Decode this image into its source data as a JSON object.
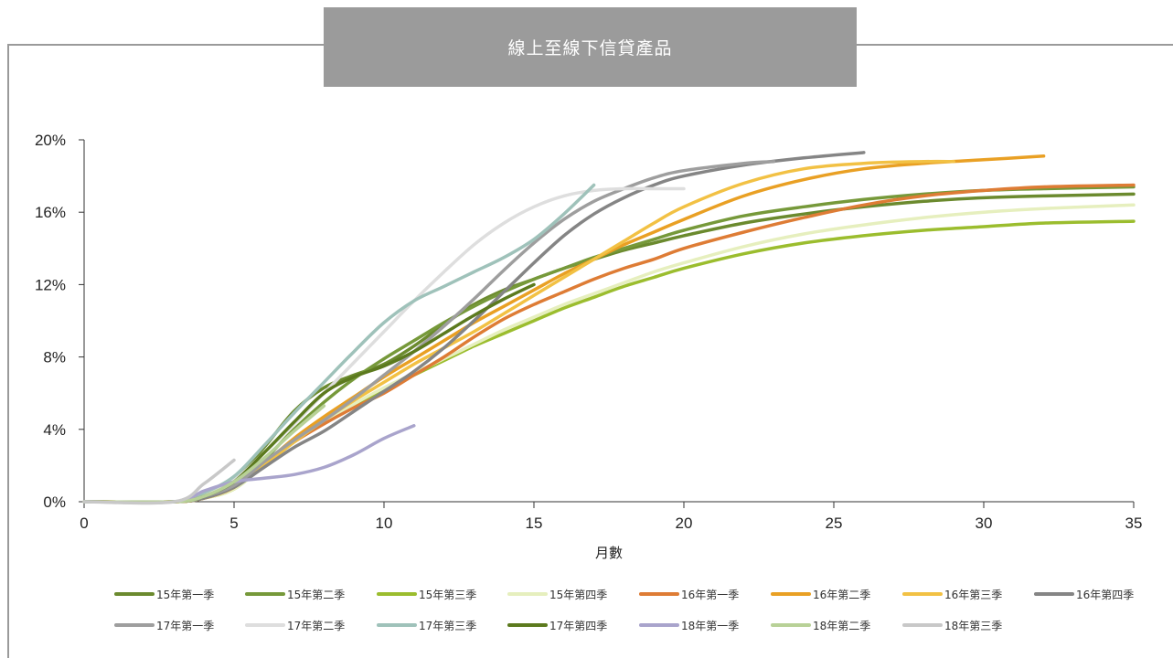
{
  "chart_data": {
    "type": "line",
    "title": "線上至線下信貸產品",
    "xlabel": "月數",
    "ylabel": "",
    "xlim": [
      0,
      35
    ],
    "ylim": [
      0,
      20
    ],
    "x_ticks": [
      0,
      5,
      10,
      15,
      20,
      25,
      30,
      35
    ],
    "y_ticks": [
      0,
      4,
      8,
      12,
      16,
      20
    ],
    "y_tick_labels": [
      "0%",
      "4%",
      "8%",
      "12%",
      "16%",
      "20%"
    ],
    "grid": false,
    "legend_position": "bottom",
    "series": [
      {
        "name": "15年第一季",
        "color": "#6b8a2e",
        "points": [
          [
            0,
            0
          ],
          [
            3,
            0
          ],
          [
            4,
            0.3
          ],
          [
            5,
            1.2
          ],
          [
            6,
            3
          ],
          [
            7,
            5
          ],
          [
            8,
            6.3
          ],
          [
            9,
            7
          ],
          [
            10,
            7.6
          ],
          [
            11,
            8.6
          ],
          [
            12,
            9.8
          ],
          [
            13,
            10.9
          ],
          [
            14,
            11.7
          ],
          [
            15,
            12.3
          ],
          [
            16,
            12.9
          ],
          [
            17,
            13.4
          ],
          [
            18,
            13.9
          ],
          [
            19,
            14.3
          ],
          [
            20,
            14.7
          ],
          [
            22,
            15.4
          ],
          [
            24,
            15.9
          ],
          [
            26,
            16.3
          ],
          [
            28,
            16.6
          ],
          [
            30,
            16.8
          ],
          [
            32,
            16.9
          ],
          [
            35,
            17
          ]
        ]
      },
      {
        "name": "15年第二季",
        "color": "#76993a",
        "points": [
          [
            0,
            0
          ],
          [
            3,
            0
          ],
          [
            4,
            0.2
          ],
          [
            5,
            0.8
          ],
          [
            6,
            2.3
          ],
          [
            7,
            4
          ],
          [
            8,
            5.5
          ],
          [
            9,
            6.8
          ],
          [
            10,
            7.9
          ],
          [
            11,
            8.9
          ],
          [
            12,
            9.9
          ],
          [
            13,
            10.8
          ],
          [
            14,
            11.6
          ],
          [
            15,
            12.3
          ],
          [
            16,
            12.9
          ],
          [
            17,
            13.5
          ],
          [
            18,
            14
          ],
          [
            19,
            14.5
          ],
          [
            20,
            15
          ],
          [
            22,
            15.8
          ],
          [
            24,
            16.3
          ],
          [
            26,
            16.7
          ],
          [
            28,
            17
          ],
          [
            30,
            17.2
          ],
          [
            32,
            17.3
          ],
          [
            35,
            17.4
          ]
        ]
      },
      {
        "name": "15年第三季",
        "color": "#9bbd2e",
        "points": [
          [
            0,
            0
          ],
          [
            3,
            0
          ],
          [
            4,
            0.2
          ],
          [
            5,
            0.7
          ],
          [
            6,
            2
          ],
          [
            7,
            3.3
          ],
          [
            8,
            4.4
          ],
          [
            9,
            5.3
          ],
          [
            10,
            6.2
          ],
          [
            11,
            7
          ],
          [
            12,
            7.8
          ],
          [
            13,
            8.6
          ],
          [
            14,
            9.3
          ],
          [
            15,
            10
          ],
          [
            16,
            10.7
          ],
          [
            17,
            11.3
          ],
          [
            18,
            11.9
          ],
          [
            19,
            12.4
          ],
          [
            20,
            12.9
          ],
          [
            22,
            13.7
          ],
          [
            24,
            14.3
          ],
          [
            26,
            14.7
          ],
          [
            28,
            15
          ],
          [
            30,
            15.2
          ],
          [
            32,
            15.4
          ],
          [
            35,
            15.5
          ]
        ]
      },
      {
        "name": "15年第四季",
        "color": "#e6efbe",
        "points": [
          [
            0,
            0
          ],
          [
            3,
            0
          ],
          [
            4,
            0.2
          ],
          [
            5,
            0.7
          ],
          [
            6,
            2
          ],
          [
            7,
            3.3
          ],
          [
            8,
            4.4
          ],
          [
            9,
            5.4
          ],
          [
            10,
            6.3
          ],
          [
            11,
            7.1
          ],
          [
            12,
            7.9
          ],
          [
            13,
            8.7
          ],
          [
            14,
            9.5
          ],
          [
            15,
            10.2
          ],
          [
            16,
            10.9
          ],
          [
            17,
            11.5
          ],
          [
            18,
            12.1
          ],
          [
            19,
            12.7
          ],
          [
            20,
            13.2
          ],
          [
            22,
            14.1
          ],
          [
            24,
            14.8
          ],
          [
            26,
            15.3
          ],
          [
            28,
            15.7
          ],
          [
            30,
            16
          ],
          [
            32,
            16.2
          ],
          [
            35,
            16.4
          ]
        ]
      },
      {
        "name": "16年第一季",
        "color": "#de7c35",
        "points": [
          [
            0,
            0
          ],
          [
            3,
            0
          ],
          [
            4,
            0.2
          ],
          [
            5,
            0.8
          ],
          [
            6,
            2.1
          ],
          [
            7,
            3.3
          ],
          [
            8,
            4.3
          ],
          [
            9,
            5.2
          ],
          [
            10,
            6
          ],
          [
            11,
            7
          ],
          [
            12,
            8
          ],
          [
            13,
            9.1
          ],
          [
            14,
            10.1
          ],
          [
            15,
            10.9
          ],
          [
            16,
            11.6
          ],
          [
            17,
            12.3
          ],
          [
            18,
            12.9
          ],
          [
            19,
            13.4
          ],
          [
            20,
            14
          ],
          [
            22,
            14.9
          ],
          [
            24,
            15.7
          ],
          [
            26,
            16.4
          ],
          [
            28,
            16.9
          ],
          [
            30,
            17.2
          ],
          [
            32,
            17.4
          ],
          [
            35,
            17.5
          ]
        ]
      },
      {
        "name": "16年第二季",
        "color": "#e9a024",
        "points": [
          [
            0,
            0
          ],
          [
            3,
            0
          ],
          [
            4,
            0.2
          ],
          [
            5,
            0.8
          ],
          [
            6,
            2.1
          ],
          [
            7,
            3.5
          ],
          [
            8,
            4.7
          ],
          [
            9,
            5.8
          ],
          [
            10,
            6.9
          ],
          [
            11,
            7.9
          ],
          [
            12,
            8.9
          ],
          [
            13,
            9.9
          ],
          [
            14,
            10.8
          ],
          [
            15,
            11.7
          ],
          [
            16,
            12.6
          ],
          [
            17,
            13.4
          ],
          [
            18,
            14.2
          ],
          [
            19,
            14.9
          ],
          [
            20,
            15.6
          ],
          [
            22,
            16.9
          ],
          [
            24,
            17.8
          ],
          [
            26,
            18.4
          ],
          [
            28,
            18.7
          ],
          [
            30,
            18.9
          ],
          [
            32,
            19.1
          ]
        ]
      },
      {
        "name": "16年第三季",
        "color": "#f2c144",
        "points": [
          [
            0,
            0
          ],
          [
            3,
            0
          ],
          [
            4,
            0.2
          ],
          [
            5,
            0.8
          ],
          [
            6,
            2
          ],
          [
            7,
            3.3
          ],
          [
            8,
            4.5
          ],
          [
            9,
            5.6
          ],
          [
            10,
            6.6
          ],
          [
            11,
            7.6
          ],
          [
            12,
            8.5
          ],
          [
            13,
            9.4
          ],
          [
            14,
            10.4
          ],
          [
            15,
            11.4
          ],
          [
            16,
            12.4
          ],
          [
            17,
            13.4
          ],
          [
            18,
            14.4
          ],
          [
            19,
            15.4
          ],
          [
            20,
            16.3
          ],
          [
            22,
            17.6
          ],
          [
            24,
            18.4
          ],
          [
            26,
            18.7
          ],
          [
            28,
            18.8
          ],
          [
            29,
            18.8
          ]
        ]
      },
      {
        "name": "16年第四季",
        "color": "#858585",
        "points": [
          [
            0,
            0
          ],
          [
            3,
            0
          ],
          [
            4,
            0.2
          ],
          [
            5,
            0.8
          ],
          [
            6,
            1.9
          ],
          [
            7,
            3
          ],
          [
            8,
            3.9
          ],
          [
            9,
            5
          ],
          [
            10,
            6.1
          ],
          [
            11,
            7.2
          ],
          [
            12,
            8.5
          ],
          [
            13,
            10
          ],
          [
            14,
            11.6
          ],
          [
            15,
            13.2
          ],
          [
            16,
            14.7
          ],
          [
            17,
            15.9
          ],
          [
            18,
            16.8
          ],
          [
            19,
            17.5
          ],
          [
            20,
            18
          ],
          [
            22,
            18.6
          ],
          [
            24,
            19
          ],
          [
            26,
            19.3
          ]
        ]
      },
      {
        "name": "17年第一季",
        "color": "#9e9e9e",
        "points": [
          [
            0,
            0
          ],
          [
            3,
            0
          ],
          [
            4,
            0.3
          ],
          [
            5,
            0.9
          ],
          [
            6,
            2.2
          ],
          [
            7,
            3.4
          ],
          [
            8,
            4.5
          ],
          [
            9,
            5.7
          ],
          [
            10,
            7
          ],
          [
            11,
            8.3
          ],
          [
            12,
            9.7
          ],
          [
            13,
            11.2
          ],
          [
            14,
            12.8
          ],
          [
            15,
            14.3
          ],
          [
            16,
            15.6
          ],
          [
            17,
            16.6
          ],
          [
            18,
            17.3
          ],
          [
            19,
            17.9
          ],
          [
            20,
            18.3
          ],
          [
            22,
            18.7
          ],
          [
            23,
            18.8
          ]
        ]
      },
      {
        "name": "17年第二季",
        "color": "#dedede",
        "points": [
          [
            0,
            0
          ],
          [
            3,
            0
          ],
          [
            4,
            0.4
          ],
          [
            5,
            1.2
          ],
          [
            6,
            2.7
          ],
          [
            7,
            4.3
          ],
          [
            8,
            6
          ],
          [
            9,
            7.7
          ],
          [
            10,
            9.4
          ],
          [
            11,
            11.1
          ],
          [
            12,
            12.7
          ],
          [
            13,
            14.2
          ],
          [
            14,
            15.4
          ],
          [
            15,
            16.3
          ],
          [
            16,
            16.9
          ],
          [
            17,
            17.2
          ],
          [
            18,
            17.3
          ],
          [
            19,
            17.3
          ],
          [
            20,
            17.3
          ]
        ]
      },
      {
        "name": "17年第三季",
        "color": "#9fc2ba",
        "points": [
          [
            0,
            0
          ],
          [
            3,
            0
          ],
          [
            4,
            0.5
          ],
          [
            5,
            1.4
          ],
          [
            6,
            3.1
          ],
          [
            7,
            4.9
          ],
          [
            8,
            6.6
          ],
          [
            9,
            8.3
          ],
          [
            10,
            9.9
          ],
          [
            11,
            11.1
          ],
          [
            12,
            11.9
          ],
          [
            13,
            12.7
          ],
          [
            14,
            13.5
          ],
          [
            15,
            14.5
          ],
          [
            16,
            15.9
          ],
          [
            17,
            17.5
          ]
        ]
      },
      {
        "name": "17年第四季",
        "color": "#5c7a1e",
        "points": [
          [
            0,
            0
          ],
          [
            3,
            0
          ],
          [
            4,
            0.3
          ],
          [
            5,
            1.1
          ],
          [
            6,
            2.7
          ],
          [
            7,
            4.4
          ],
          [
            8,
            6
          ],
          [
            9,
            6.9
          ],
          [
            10,
            7.5
          ],
          [
            11,
            8.3
          ],
          [
            12,
            9.3
          ],
          [
            13,
            10.3
          ],
          [
            14,
            11.2
          ],
          [
            15,
            12
          ]
        ]
      },
      {
        "name": "18年第一季",
        "color": "#a9a4cc",
        "points": [
          [
            0,
            0
          ],
          [
            3,
            0
          ],
          [
            4,
            0.6
          ],
          [
            5,
            1.1
          ],
          [
            6,
            1.3
          ],
          [
            7,
            1.5
          ],
          [
            8,
            1.9
          ],
          [
            9,
            2.6
          ],
          [
            10,
            3.5
          ],
          [
            11,
            4.2
          ]
        ]
      },
      {
        "name": "18年第二季",
        "color": "#b8d197",
        "points": [
          [
            0,
            0
          ],
          [
            3,
            0
          ],
          [
            4,
            0.3
          ],
          [
            5,
            1.1
          ],
          [
            6,
            2.4
          ],
          [
            7,
            3.9
          ],
          [
            8,
            5.3
          ]
        ]
      },
      {
        "name": "18年第三季",
        "color": "#c8c8c8",
        "points": [
          [
            0,
            0
          ],
          [
            3,
            0
          ],
          [
            4,
            1
          ],
          [
            5,
            2.3
          ]
        ]
      }
    ]
  }
}
